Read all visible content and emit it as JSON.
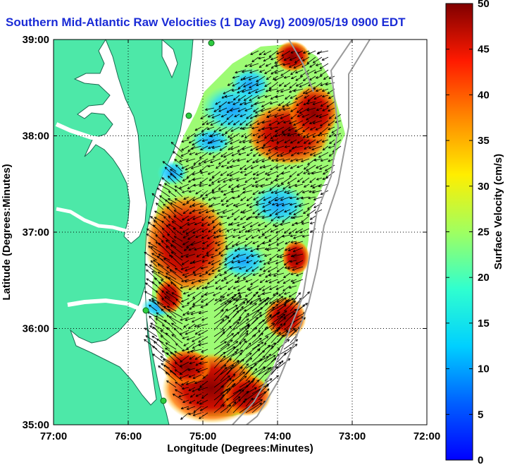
{
  "title": "Southern Mid-Atlantic Raw Velocities (1 Day Avg) 2009/05/19 0900 EDT",
  "map": {
    "xlabel": "Longitude (Degrees:Minutes)",
    "ylabel": "Latitude (Degrees:Minutes)",
    "lon_range": [
      -77,
      -72
    ],
    "lat_range": [
      35,
      39
    ],
    "lon_ticks": [
      "77:00",
      "76:00",
      "75:00",
      "74:00",
      "73:00",
      "72:00"
    ],
    "lat_ticks": [
      "39:00",
      "38:00",
      "37:00",
      "36:00",
      "35:00"
    ],
    "grid": "dotted",
    "land_color": "#4de8a8",
    "water_color": "#ffffff"
  },
  "colorbar": {
    "label": "Surface Velocity (cm/s)",
    "min": 0,
    "max": 50,
    "ticks": [
      "50",
      "45",
      "40",
      "35",
      "30",
      "25",
      "20",
      "15",
      "10",
      "5",
      "0"
    ],
    "colormap": "jet"
  }
}
